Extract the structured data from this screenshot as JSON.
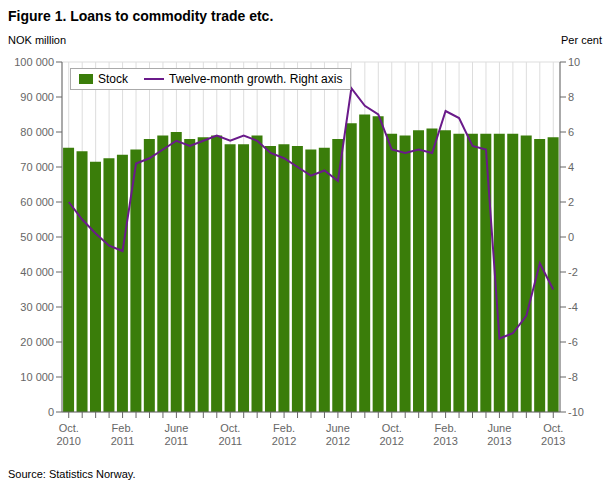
{
  "chart_data": {
    "type": "bar",
    "title": "Figure 1. Loans to commodity trade etc.",
    "ylabel": "NOK million",
    "y2label": "Per cent",
    "annotations": [
      "Source: Statistics Norway."
    ],
    "categories": [
      "Oct.\n2010",
      null,
      null,
      null,
      "Feb.\n2011",
      null,
      null,
      null,
      "June\n2011",
      null,
      null,
      null,
      "Oct.\n2011",
      null,
      null,
      null,
      "Feb.\n2012",
      null,
      null,
      null,
      "June\n2012",
      null,
      null,
      null,
      "Oct.\n2012",
      null,
      null,
      null,
      "Feb.\n2013",
      null,
      null,
      null,
      "June\n2013",
      null,
      null,
      null,
      "Oct.\n2013"
    ],
    "series": [
      {
        "name": "Stock",
        "type": "bar",
        "color": "#3a7d0a",
        "values": [
          75500,
          74500,
          71500,
          72500,
          73500,
          75000,
          78000,
          79000,
          80000,
          78000,
          78500,
          79000,
          76500,
          76500,
          79000,
          76000,
          76500,
          76000,
          75000,
          75500,
          78000,
          82500,
          85000,
          84500,
          79500,
          79000,
          80500,
          81000,
          80500,
          79500,
          79500,
          79500,
          79500,
          79500,
          79000,
          78000,
          78500
        ]
      },
      {
        "name": "Twelve-month growth. Right axis",
        "type": "line",
        "axis": "y2",
        "color": "#6a1a8a",
        "values": [
          2.0,
          1.0,
          0.2,
          -0.5,
          -0.8,
          4.2,
          4.5,
          5.0,
          5.5,
          5.2,
          5.5,
          5.8,
          5.5,
          5.8,
          5.5,
          4.8,
          4.5,
          4.0,
          3.5,
          3.8,
          3.2,
          8.5,
          7.5,
          7.0,
          5.0,
          4.8,
          5.0,
          4.8,
          7.2,
          6.8,
          5.2,
          5.0,
          -5.8,
          -5.5,
          -4.5,
          -1.5,
          -3.0
        ]
      }
    ],
    "ylim": [
      0,
      100000
    ],
    "yticks": [
      0,
      {
        "value": 10000,
        "label": "10 000"
      },
      {
        "value": 20000,
        "label": "20 000"
      },
      {
        "value": 30000,
        "label": "30 000"
      },
      {
        "value": 40000,
        "label": "40 000"
      },
      {
        "value": 50000,
        "label": "50 000"
      },
      {
        "value": 60000,
        "label": "60 000"
      },
      {
        "value": 70000,
        "label": "70 000"
      },
      {
        "value": 80000,
        "label": "80 000"
      },
      {
        "value": 90000,
        "label": "90 000"
      },
      {
        "value": 100000,
        "label": "100 000"
      }
    ],
    "y2lim": [
      -10,
      10
    ],
    "y2ticks": [
      -10,
      -8,
      -6,
      -4,
      -2,
      0,
      2,
      4,
      6,
      8,
      10
    ],
    "grid": true,
    "legend": "upper left"
  }
}
